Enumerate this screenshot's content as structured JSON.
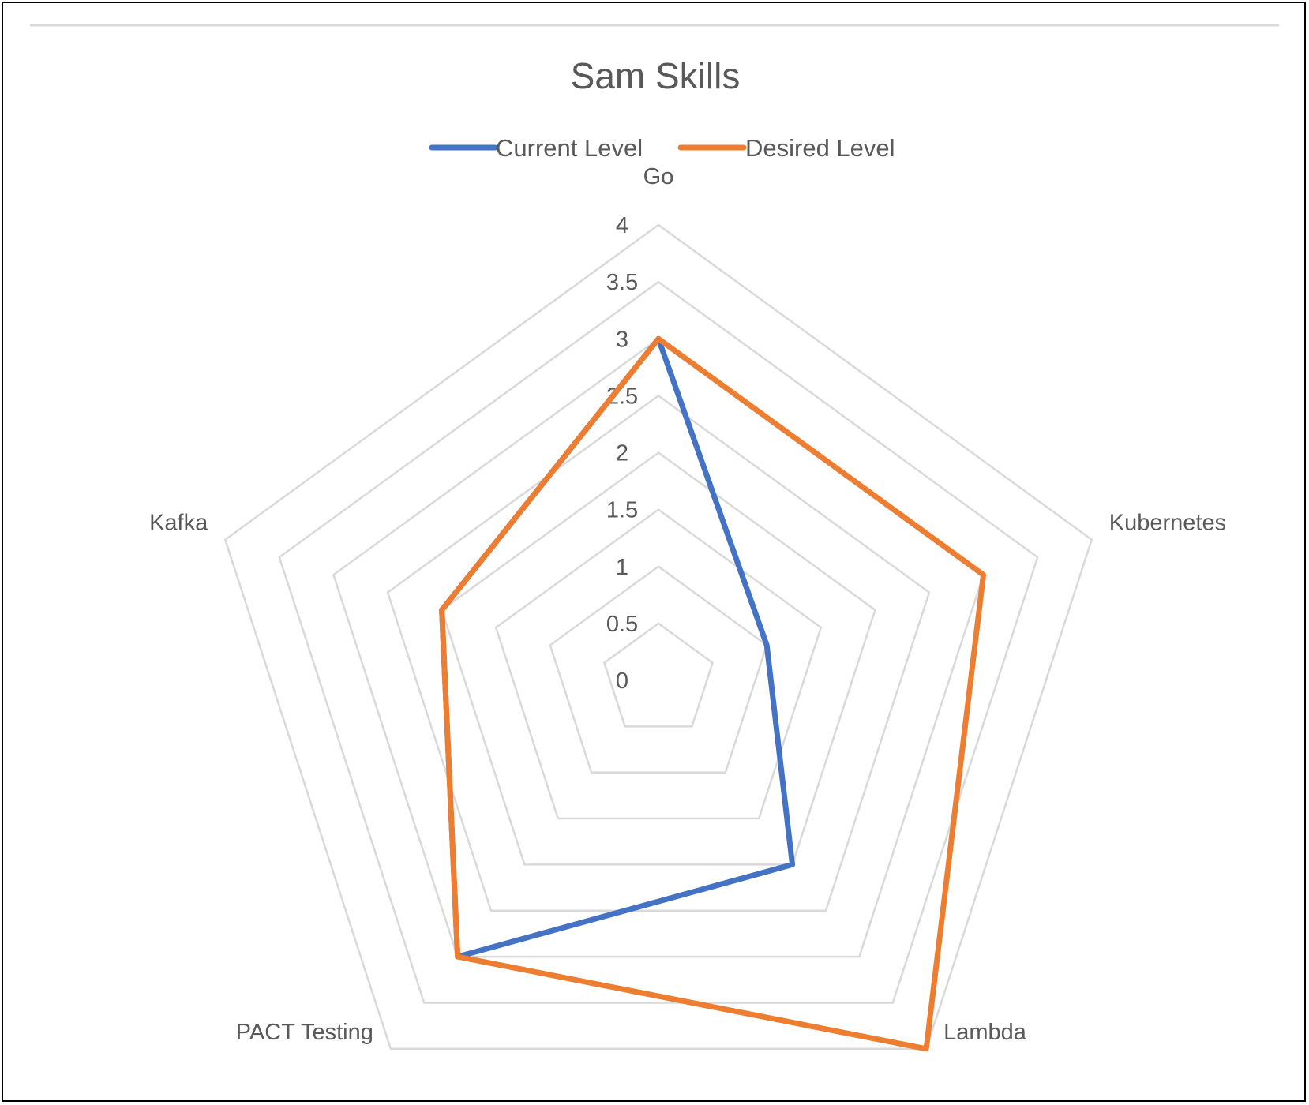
{
  "chart_data": {
    "type": "radar",
    "title": "Sam Skills",
    "categories": [
      "Go",
      "Kubernetes",
      "Lambda",
      "PACT Testing",
      "Kafka"
    ],
    "series": [
      {
        "name": "Current Level",
        "color": "#4472C4",
        "values": [
          3,
          1,
          2,
          3,
          2
        ]
      },
      {
        "name": "Desired Level",
        "color": "#ED7D31",
        "values": [
          3,
          3,
          4,
          3,
          2
        ]
      }
    ],
    "rlim": [
      0,
      4
    ],
    "ticks": [
      "0",
      "0.5",
      "1",
      "1.5",
      "2",
      "2.5",
      "3",
      "3.5",
      "4"
    ],
    "grid": true,
    "grid_color": "#D9D9D9",
    "legend": "top"
  }
}
